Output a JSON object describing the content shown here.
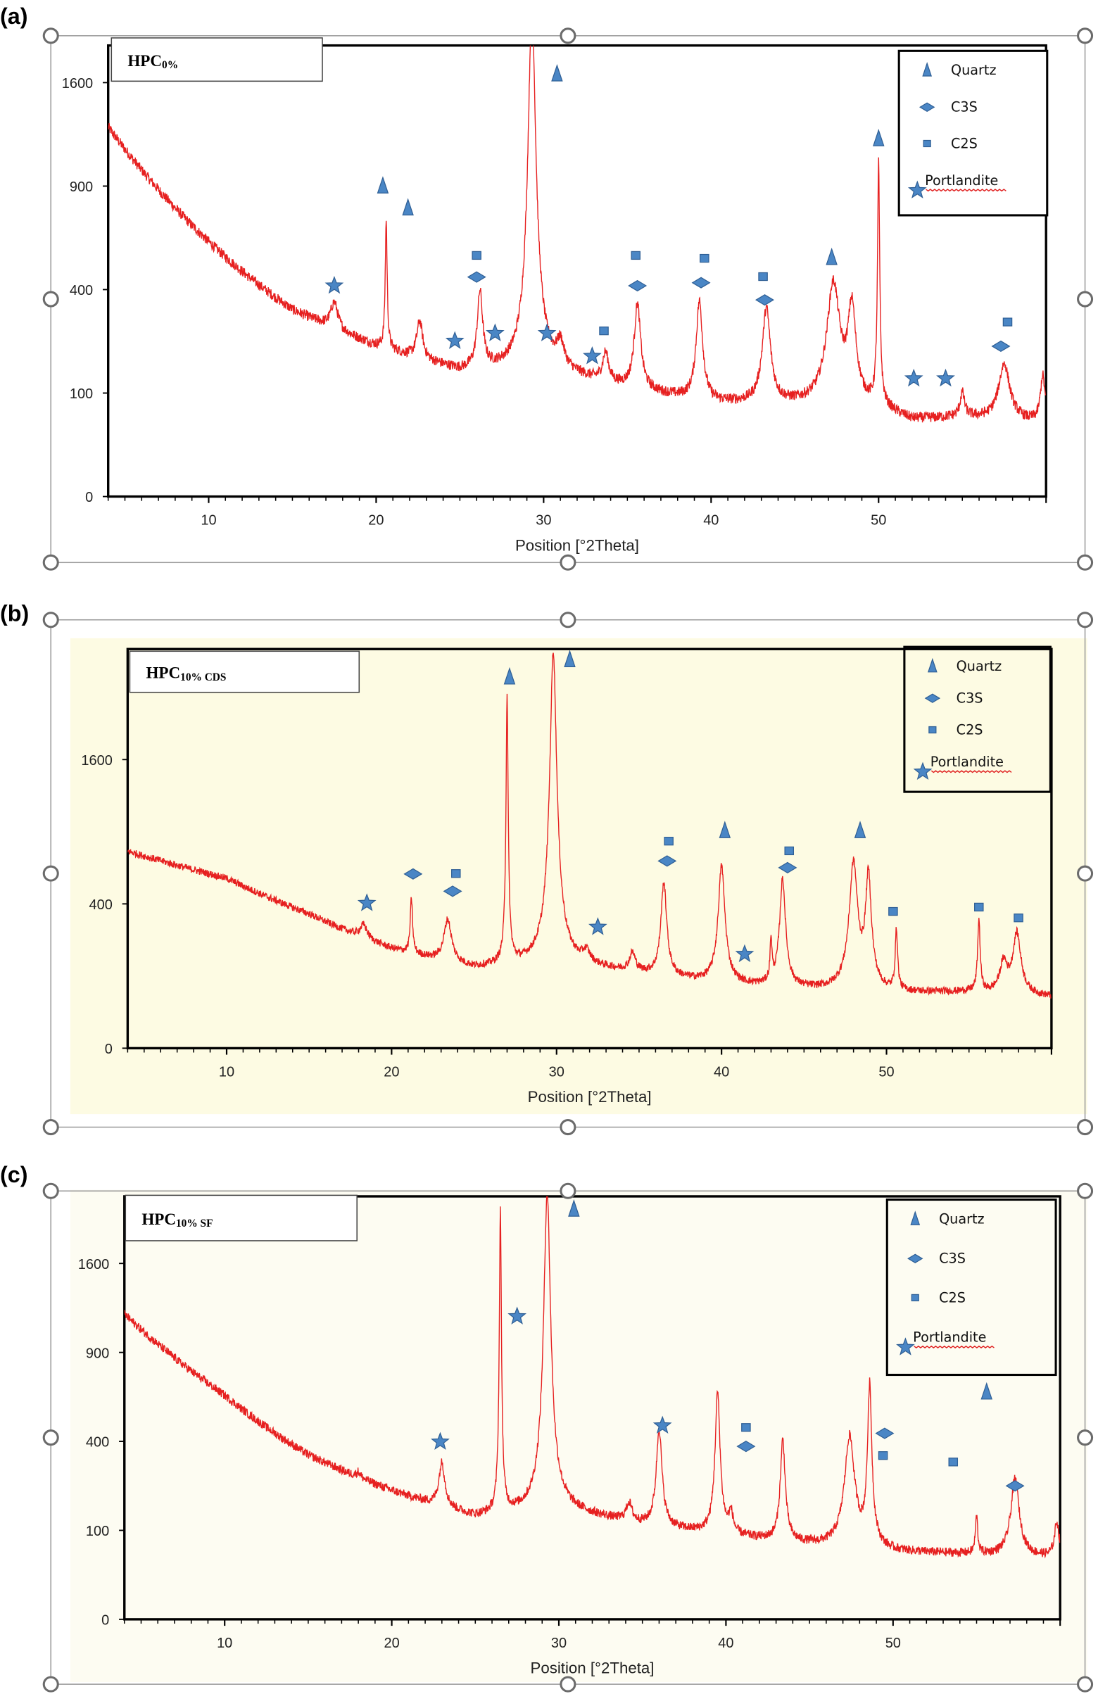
{
  "colors": {
    "curve": "#e62020",
    "marker_fill": "#4a86c5",
    "marker_stroke": "#2f5f95",
    "panel_b_bg": "#fdfbe3",
    "panel_c_bg": "#fdfcf2"
  },
  "legend_items": [
    {
      "label": "Quartz",
      "marker": "triangle"
    },
    {
      "label": "C3S",
      "marker": "diamond"
    },
    {
      "label": "C2S",
      "marker": "square"
    },
    {
      "label": "Portlandite",
      "marker": "star"
    }
  ],
  "chart_data": [
    {
      "type": "line",
      "panel_label": "(a)",
      "title": "HPC",
      "title_subscript": "0%",
      "xlabel": "Position [°2Theta]",
      "ylabel": "",
      "xlim": [
        4,
        60
      ],
      "ylim": [
        0,
        1900
      ],
      "y_scale": "sqrt",
      "x_ticks": [
        10,
        20,
        30,
        40,
        50
      ],
      "y_ticks": [
        0,
        100,
        400,
        900,
        1600
      ],
      "legend_position": "top-right",
      "background": [
        [
          4,
          1275
        ],
        [
          10,
          607
        ],
        [
          15,
          326
        ],
        [
          20,
          212
        ],
        [
          25,
          147
        ],
        [
          30,
          150
        ],
        [
          35,
          109
        ],
        [
          40,
          81
        ],
        [
          45,
          78
        ],
        [
          50,
          70
        ],
        [
          52,
          53
        ],
        [
          55,
          58
        ],
        [
          60,
          50
        ]
      ],
      "peaks": [
        [
          17.5,
          90,
          0.5
        ],
        [
          20.6,
          510,
          0.12
        ],
        [
          22.6,
          110,
          0.4
        ],
        [
          26.2,
          240,
          0.35
        ],
        [
          29.3,
          2100,
          0.45
        ],
        [
          31,
          65,
          0.5
        ],
        [
          33.7,
          70,
          0.4
        ],
        [
          35.6,
          240,
          0.4
        ],
        [
          39.3,
          270,
          0.4
        ],
        [
          43.3,
          250,
          0.5
        ],
        [
          47.3,
          350,
          0.8
        ],
        [
          48.4,
          260,
          0.5
        ],
        [
          50,
          960,
          0.12
        ],
        [
          55,
          40,
          0.3
        ],
        [
          57.5,
          110,
          0.7
        ],
        [
          59.8,
          85,
          0.3
        ]
      ],
      "markers": [
        {
          "type": "triangle",
          "x": 20.4,
          "y": 900
        },
        {
          "type": "triangle",
          "x": 21.9,
          "y": 777
        },
        {
          "type": "triangle",
          "x": 30.8,
          "y": 1667
        },
        {
          "type": "triangle",
          "x": 50,
          "y": 1195
        },
        {
          "type": "triangle",
          "x": 47.2,
          "y": 533
        },
        {
          "type": "star",
          "x": 17.5,
          "y": 415
        },
        {
          "type": "star",
          "x": 24.7,
          "y": 226
        },
        {
          "type": "star",
          "x": 27.1,
          "y": 249
        },
        {
          "type": "star",
          "x": 30.2,
          "y": 249
        },
        {
          "type": "star",
          "x": 32.9,
          "y": 184
        },
        {
          "type": "star",
          "x": 52.1,
          "y": 130
        },
        {
          "type": "star",
          "x": 54,
          "y": 130
        },
        {
          "type": "diamond",
          "x": 26,
          "y": 450
        },
        {
          "type": "diamond",
          "x": 35.6,
          "y": 415
        },
        {
          "type": "diamond",
          "x": 39.4,
          "y": 427
        },
        {
          "type": "diamond",
          "x": 43.2,
          "y": 361
        },
        {
          "type": "diamond",
          "x": 57.3,
          "y": 211
        },
        {
          "type": "square",
          "x": 26,
          "y": 541
        },
        {
          "type": "square",
          "x": 35.5,
          "y": 541
        },
        {
          "type": "square",
          "x": 39.6,
          "y": 528
        },
        {
          "type": "square",
          "x": 43.1,
          "y": 450
        },
        {
          "type": "square",
          "x": 33.6,
          "y": 255
        },
        {
          "type": "square",
          "x": 57.7,
          "y": 283
        }
      ]
    },
    {
      "type": "line",
      "panel_label": "(b)",
      "title": "HPC",
      "title_subscript": "10% CDS",
      "xlabel": "Position [°2Theta]",
      "ylabel": "",
      "xlim": [
        4,
        60
      ],
      "ylim": [
        0,
        3060
      ],
      "y_scale": "sqrt",
      "x_ticks": [
        10,
        20,
        30,
        40,
        50
      ],
      "y_ticks": [
        0,
        400,
        1600
      ],
      "legend_position": "top-right",
      "background": [
        [
          4,
          745
        ],
        [
          10,
          554
        ],
        [
          15,
          346
        ],
        [
          20,
          190
        ],
        [
          25,
          123
        ],
        [
          30,
          140
        ],
        [
          35,
          107
        ],
        [
          40,
          78
        ],
        [
          45,
          66
        ],
        [
          50,
          58
        ],
        [
          55,
          60
        ],
        [
          60,
          50
        ]
      ],
      "peaks": [
        [
          18.3,
          60,
          0.5
        ],
        [
          21.2,
          260,
          0.15
        ],
        [
          23.4,
          175,
          0.5
        ],
        [
          27,
          2280,
          0.12
        ],
        [
          29.8,
          2890,
          0.4
        ],
        [
          31.8,
          40,
          0.5
        ],
        [
          34.6,
          60,
          0.4
        ],
        [
          36.5,
          430,
          0.35
        ],
        [
          40,
          560,
          0.4
        ],
        [
          43,
          150,
          0.12
        ],
        [
          43.7,
          480,
          0.35
        ],
        [
          48,
          600,
          0.5
        ],
        [
          48.9,
          520,
          0.35
        ],
        [
          50.6,
          210,
          0.15
        ],
        [
          55.6,
          260,
          0.15
        ],
        [
          57.1,
          85,
          0.5
        ],
        [
          57.9,
          200,
          0.5
        ]
      ],
      "markers": [
        {
          "type": "triangle",
          "x": 27.15,
          "y": 2645
        },
        {
          "type": "triangle",
          "x": 30.8,
          "y": 2897
        },
        {
          "type": "triangle",
          "x": 40.2,
          "y": 908
        },
        {
          "type": "triangle",
          "x": 48.4,
          "y": 908
        },
        {
          "type": "star",
          "x": 18.5,
          "y": 404
        },
        {
          "type": "star",
          "x": 32.5,
          "y": 282
        },
        {
          "type": "star",
          "x": 41.4,
          "y": 170
        },
        {
          "type": "diamond",
          "x": 21.3,
          "y": 583
        },
        {
          "type": "diamond",
          "x": 23.7,
          "y": 473
        },
        {
          "type": "diamond",
          "x": 36.7,
          "y": 673
        },
        {
          "type": "diamond",
          "x": 44,
          "y": 626
        },
        {
          "type": "square",
          "x": 23.9,
          "y": 583
        },
        {
          "type": "square",
          "x": 36.8,
          "y": 820
        },
        {
          "type": "square",
          "x": 44.1,
          "y": 745
        },
        {
          "type": "square",
          "x": 50.4,
          "y": 357
        },
        {
          "type": "square",
          "x": 55.6,
          "y": 380
        },
        {
          "type": "square",
          "x": 58,
          "y": 324
        }
      ]
    },
    {
      "type": "line",
      "panel_label": "(c)",
      "title": "HPC",
      "title_subscript": "10% SF",
      "xlabel": "Position [°2Theta]",
      "ylabel": "",
      "xlim": [
        4,
        60
      ],
      "ylim": [
        0,
        2260
      ],
      "y_scale": "sqrt",
      "x_ticks": [
        10,
        20,
        30,
        40,
        50
      ],
      "y_ticks": [
        0,
        100,
        400,
        900,
        1600
      ],
      "legend_position": "top-right",
      "background": [
        [
          4,
          1176
        ],
        [
          10,
          634
        ],
        [
          15,
          342
        ],
        [
          20,
          209
        ],
        [
          25,
          133
        ],
        [
          30,
          154
        ],
        [
          35,
          112
        ],
        [
          40,
          88
        ],
        [
          45,
          70
        ],
        [
          50,
          57
        ],
        [
          55,
          53
        ],
        [
          60,
          48
        ]
      ],
      "peaks": [
        [
          18,
          20,
          0.3
        ],
        [
          23,
          150,
          0.4
        ],
        [
          26.5,
          1980,
          0.12
        ],
        [
          29.3,
          2150,
          0.4
        ],
        [
          34.2,
          50,
          0.4
        ],
        [
          36,
          350,
          0.35
        ],
        [
          39.5,
          560,
          0.3
        ],
        [
          40.3,
          50,
          0.3
        ],
        [
          43.4,
          330,
          0.3
        ],
        [
          47.4,
          360,
          0.6
        ],
        [
          48.6,
          630,
          0.25
        ],
        [
          55,
          80,
          0.15
        ],
        [
          57.3,
          200,
          0.5
        ],
        [
          59.8,
          70,
          0.3
        ]
      ],
      "markers": [
        {
          "type": "triangle",
          "x": 30.9,
          "y": 2124
        },
        {
          "type": "triangle",
          "x": 55.6,
          "y": 652
        },
        {
          "type": "star",
          "x": 22.9,
          "y": 398
        },
        {
          "type": "star",
          "x": 27.5,
          "y": 1159
        },
        {
          "type": "star",
          "x": 36.2,
          "y": 474
        },
        {
          "type": "diamond",
          "x": 41.2,
          "y": 378
        },
        {
          "type": "diamond",
          "x": 49.5,
          "y": 437
        },
        {
          "type": "diamond",
          "x": 57.3,
          "y": 225
        },
        {
          "type": "square",
          "x": 41.2,
          "y": 463
        },
        {
          "type": "square",
          "x": 49.4,
          "y": 337
        },
        {
          "type": "square",
          "x": 53.6,
          "y": 311
        }
      ]
    }
  ]
}
